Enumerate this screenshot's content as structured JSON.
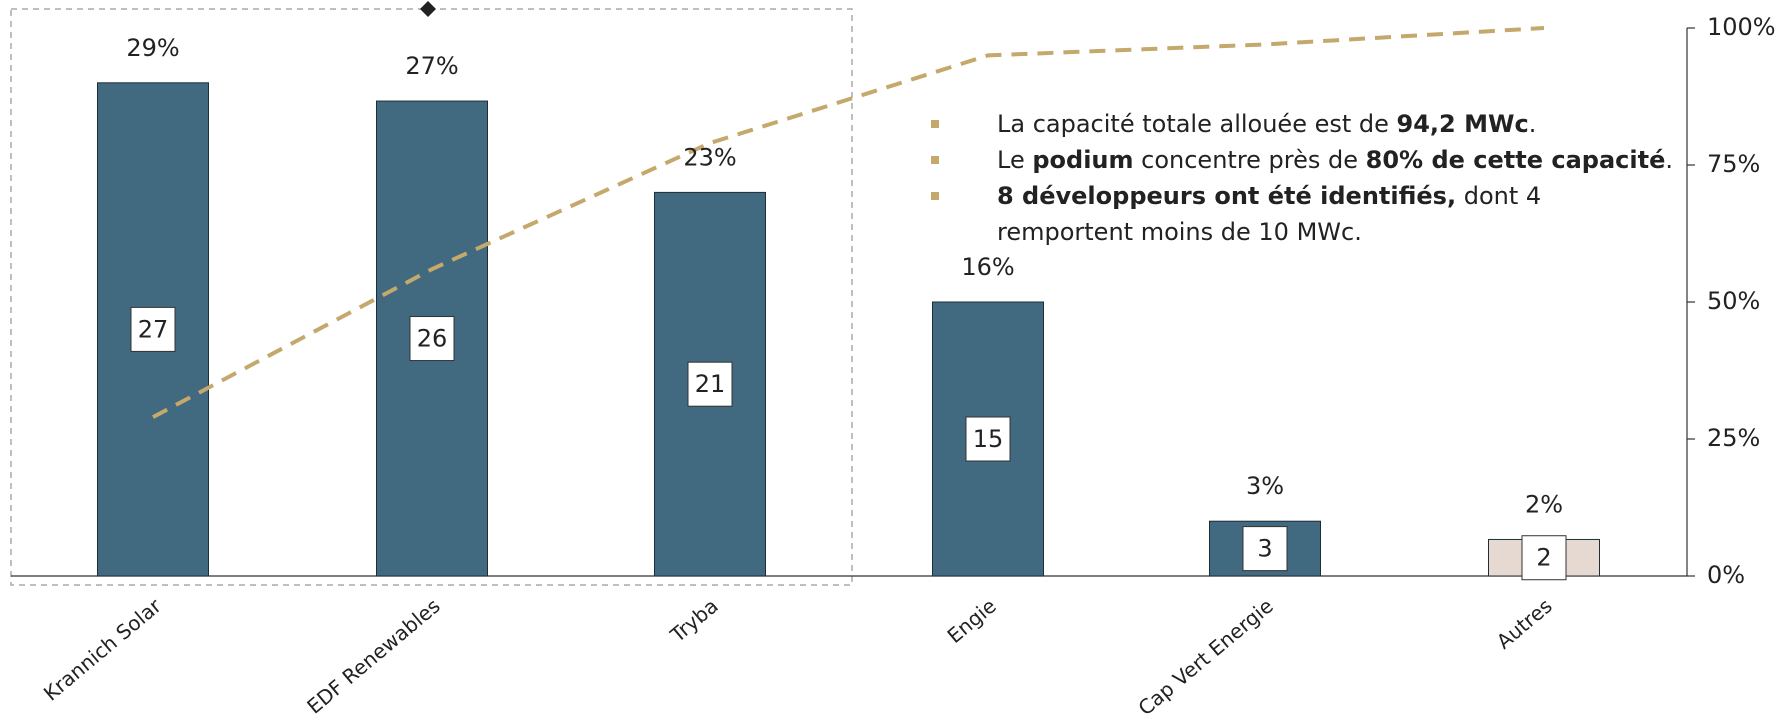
{
  "chart_data": {
    "type": "bar",
    "categories": [
      "Krannich Solar",
      "EDF Renewables",
      "Tryba",
      "Engie",
      "Cap Vert Energie",
      "Autres"
    ],
    "series": [
      {
        "name": "MWc",
        "colors": [
          "#41697f",
          "#41697f",
          "#41697f",
          "#41697f",
          "#41697f",
          "#e6d9d2"
        ],
        "values": [
          27,
          26,
          21,
          15,
          3,
          2
        ]
      }
    ],
    "shares": {
      "values": [
        29,
        27,
        23,
        16,
        3,
        2
      ],
      "value_labels": [
        "29%",
        "27%",
        "23%",
        "16%",
        "3%",
        "2%"
      ]
    },
    "cumulative": {
      "type": "line",
      "axis": "y2",
      "color": "#c4a86c",
      "dashed": true,
      "values": [
        29,
        56,
        79,
        95,
        97,
        100
      ]
    },
    "ylim": [
      0,
      30
    ],
    "y2lim": [
      0,
      100
    ],
    "y2ticks": [
      {
        "value": 0,
        "label": "0%"
      },
      {
        "value": 25,
        "label": "25%"
      },
      {
        "value": 50,
        "label": "50%"
      },
      {
        "value": 75,
        "label": "75%"
      },
      {
        "value": 100,
        "label": "100%"
      }
    ],
    "notes": [
      [
        {
          "text": "La capacité totale allouée est de "
        },
        {
          "text": "94,2 MWc",
          "bold": true
        },
        {
          "text": "."
        }
      ],
      [
        {
          "text": "Le "
        },
        {
          "text": "podium",
          "bold": true
        },
        {
          "text": " concentre près de "
        },
        {
          "text": "80% de cette capacité",
          "bold": true
        },
        {
          "text": "."
        }
      ],
      [
        {
          "text": "8 développeurs ont été identifiés,",
          "bold": true
        },
        {
          "text": " dont 4 remportent moins de 10 MWc."
        }
      ]
    ]
  }
}
